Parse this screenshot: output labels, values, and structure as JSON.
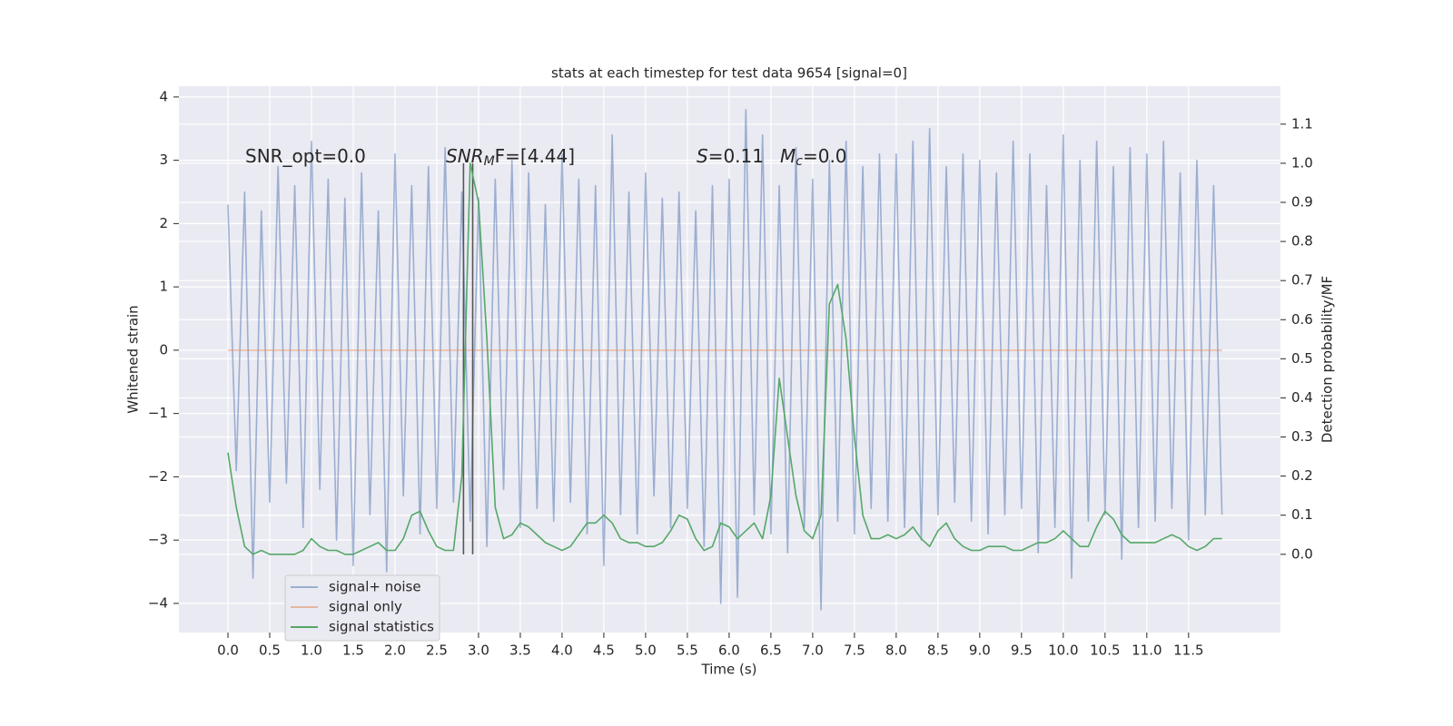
{
  "chart_data": {
    "type": "line",
    "title": "stats at each timestep for test data 9654 [signal=0]",
    "xlabel": "Time (s)",
    "ylabel": "Whitened strain",
    "y2label": "Detection probability/MF",
    "annotations": [
      [
        "SNR_opt=0.0"
      ],
      [
        "SNR",
        "M",
        "F=[4.44]"
      ],
      [
        "S",
        "=0.11"
      ],
      [
        "M",
        "c",
        "=0.0"
      ]
    ],
    "x": [
      0.0,
      0.1,
      0.2,
      0.3,
      0.4,
      0.5,
      0.6,
      0.7,
      0.8,
      0.9,
      1.0,
      1.1,
      1.2,
      1.3,
      1.4,
      1.5,
      1.6,
      1.7,
      1.8,
      1.9,
      2.0,
      2.1,
      2.2,
      2.3,
      2.4,
      2.5,
      2.6,
      2.7,
      2.8,
      2.9,
      3.0,
      3.1,
      3.2,
      3.3,
      3.4,
      3.5,
      3.6,
      3.7,
      3.8,
      3.9,
      4.0,
      4.1,
      4.2,
      4.3,
      4.4,
      4.5,
      4.6,
      4.7,
      4.8,
      4.9,
      5.0,
      5.1,
      5.2,
      5.3,
      5.4,
      5.5,
      5.6,
      5.7,
      5.8,
      5.9,
      6.0,
      6.1,
      6.2,
      6.3,
      6.4,
      6.5,
      6.6,
      6.7,
      6.8,
      6.9,
      7.0,
      7.1,
      7.2,
      7.3,
      7.4,
      7.5,
      7.6,
      7.7,
      7.8,
      7.9,
      8.0,
      8.1,
      8.2,
      8.3,
      8.4,
      8.5,
      8.6,
      8.7,
      8.8,
      8.9,
      9.0,
      9.1,
      9.2,
      9.3,
      9.4,
      9.5,
      9.6,
      9.7,
      9.8,
      9.9,
      10.0,
      10.1,
      10.2,
      10.3,
      10.4,
      10.5,
      10.6,
      10.7,
      10.8,
      10.9,
      11.0,
      11.1,
      11.2,
      11.3,
      11.4,
      11.5,
      11.6,
      11.7,
      11.8,
      11.9
    ],
    "series": [
      {
        "name": "signal+ noise",
        "color": "#4c72b0",
        "opacity": 0.5,
        "values": [
          2.3,
          -1.9,
          2.5,
          -3.6,
          2.2,
          -2.4,
          2.9,
          -2.1,
          2.6,
          -2.8,
          3.3,
          -2.2,
          2.7,
          -3.0,
          2.4,
          -3.4,
          2.8,
          -2.6,
          2.2,
          -3.5,
          3.1,
          -2.3,
          2.6,
          -2.9,
          2.9,
          -2.5,
          3.2,
          -2.4,
          2.5,
          -2.7,
          2.4,
          -3.1,
          2.7,
          -2.2,
          3.0,
          -2.8,
          2.8,
          -2.5,
          2.3,
          -2.7,
          3.1,
          -2.4,
          2.7,
          -2.9,
          2.6,
          -3.4,
          3.4,
          -2.6,
          2.5,
          -2.9,
          2.8,
          -2.3,
          2.4,
          -2.8,
          2.5,
          -2.5,
          2.2,
          -3.1,
          2.6,
          -4.0,
          2.7,
          -3.9,
          3.8,
          -2.6,
          3.4,
          -2.9,
          2.6,
          -3.2,
          3.2,
          -2.8,
          2.7,
          -4.1,
          3.0,
          -2.7,
          3.3,
          -2.9,
          2.9,
          -2.5,
          3.1,
          -2.7,
          3.1,
          -2.8,
          3.3,
          -3.0,
          3.5,
          -2.6,
          2.9,
          -2.4,
          3.1,
          -2.7,
          3.0,
          -2.9,
          2.8,
          -2.6,
          3.3,
          -2.5,
          3.1,
          -3.2,
          2.6,
          -2.8,
          3.4,
          -3.6,
          3.0,
          -2.7,
          3.3,
          -2.6,
          2.9,
          -3.3,
          3.2,
          -2.8,
          3.1,
          -2.7,
          3.3,
          -2.5,
          2.8,
          -3.0,
          3.0,
          -2.6,
          2.6,
          -2.6
        ]
      },
      {
        "name": "signal only",
        "color": "#dd8452",
        "opacity": 0.5,
        "values": [
          0,
          0,
          0,
          0,
          0,
          0,
          0,
          0,
          0,
          0,
          0,
          0,
          0,
          0,
          0,
          0,
          0,
          0,
          0,
          0,
          0,
          0,
          0,
          0,
          0,
          0,
          0,
          0,
          0,
          0,
          0,
          0,
          0,
          0,
          0,
          0,
          0,
          0,
          0,
          0,
          0,
          0,
          0,
          0,
          0,
          0,
          0,
          0,
          0,
          0,
          0,
          0,
          0,
          0,
          0,
          0,
          0,
          0,
          0,
          0,
          0,
          0,
          0,
          0,
          0,
          0,
          0,
          0,
          0,
          0,
          0,
          0,
          0,
          0,
          0,
          0,
          0,
          0,
          0,
          0,
          0,
          0,
          0,
          0,
          0,
          0,
          0,
          0,
          0,
          0,
          0,
          0,
          0,
          0,
          0,
          0,
          0,
          0,
          0,
          0,
          0,
          0,
          0,
          0,
          0,
          0,
          0,
          0,
          0,
          0,
          0,
          0,
          0,
          0,
          0,
          0,
          0,
          0,
          0,
          0
        ]
      },
      {
        "name": "signal statistics",
        "color": "#55a868",
        "opacity": 1,
        "axis": "y2",
        "values": [
          0.26,
          0.12,
          0.02,
          0.0,
          0.01,
          0.0,
          0.0,
          0.0,
          0.0,
          0.01,
          0.04,
          0.02,
          0.01,
          0.01,
          0.0,
          0.0,
          0.01,
          0.02,
          0.03,
          0.01,
          0.01,
          0.04,
          0.1,
          0.11,
          0.06,
          0.02,
          0.01,
          0.01,
          0.2,
          1.0,
          0.9,
          0.55,
          0.12,
          0.04,
          0.05,
          0.08,
          0.07,
          0.05,
          0.03,
          0.02,
          0.01,
          0.02,
          0.05,
          0.08,
          0.08,
          0.1,
          0.08,
          0.04,
          0.03,
          0.03,
          0.02,
          0.02,
          0.03,
          0.06,
          0.1,
          0.09,
          0.04,
          0.01,
          0.02,
          0.08,
          0.07,
          0.04,
          0.06,
          0.08,
          0.04,
          0.15,
          0.45,
          0.3,
          0.15,
          0.06,
          0.04,
          0.1,
          0.64,
          0.69,
          0.55,
          0.3,
          0.1,
          0.04,
          0.04,
          0.05,
          0.04,
          0.05,
          0.07,
          0.04,
          0.02,
          0.06,
          0.08,
          0.04,
          0.02,
          0.01,
          0.01,
          0.02,
          0.02,
          0.02,
          0.01,
          0.01,
          0.02,
          0.03,
          0.03,
          0.04,
          0.06,
          0.04,
          0.02,
          0.02,
          0.07,
          0.11,
          0.09,
          0.05,
          0.03,
          0.03,
          0.03,
          0.03,
          0.04,
          0.05,
          0.04,
          0.02,
          0.01,
          0.02,
          0.04,
          0.04
        ]
      }
    ],
    "vlines": {
      "x": [
        2.82,
        2.93
      ],
      "y2": [
        0,
        1.0
      ],
      "color": "#555555"
    },
    "xlim": [
      -0.587,
      12.6
    ],
    "xticks": [
      {
        "value": 0,
        "label": "0.0"
      },
      0.5,
      {
        "value": 1,
        "label": "1.0"
      },
      1.5,
      {
        "value": 2,
        "label": "2.0"
      },
      2.5,
      {
        "value": 3,
        "label": "3.0"
      },
      3.5,
      {
        "value": 4,
        "label": "4.0"
      },
      4.5,
      {
        "value": 5,
        "label": "5.0"
      },
      5.5,
      {
        "value": 6,
        "label": "6.0"
      },
      6.5,
      {
        "value": 7,
        "label": "7.0"
      },
      7.5,
      {
        "value": 8,
        "label": "8.0"
      },
      8.5,
      {
        "value": 9,
        "label": "9.0"
      },
      9.5,
      {
        "value": 10,
        "label": "10.0"
      },
      10.5,
      {
        "value": 11,
        "label": "11.0"
      },
      11.5
    ],
    "ylim": [
      -4.46,
      4.17
    ],
    "yticks": [
      {
        "value": -4,
        "label": "−4"
      },
      {
        "value": -3,
        "label": "−3"
      },
      {
        "value": -2,
        "label": "−2"
      },
      {
        "value": -1,
        "label": "−1"
      },
      0,
      1,
      2,
      3,
      4
    ],
    "y2lim": [
      -0.2,
      1.197
    ],
    "y2ticks": [
      {
        "value": 0,
        "label": "0.0"
      },
      0.1,
      0.2,
      0.3,
      0.4,
      0.5,
      0.6,
      0.7,
      0.8,
      0.9,
      {
        "value": 1,
        "label": "1.0"
      },
      1.1
    ],
    "grid": true,
    "legend": "lower left",
    "background": "#eaeaf2"
  }
}
